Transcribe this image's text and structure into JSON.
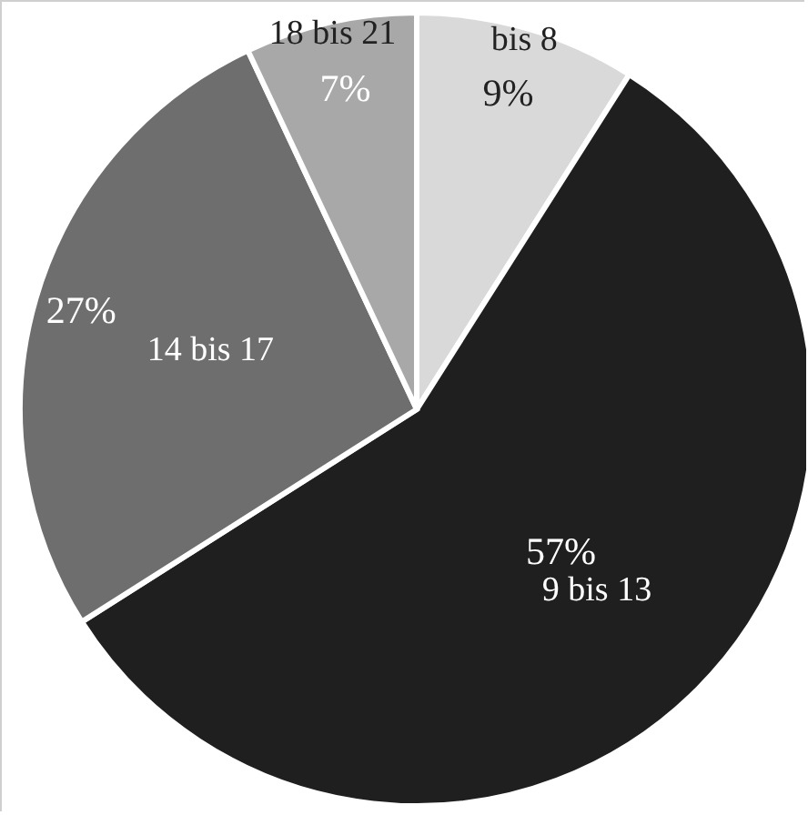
{
  "chart_data": {
    "type": "pie",
    "categories": [
      "bis 8",
      "9 bis 13",
      "14 bis 17",
      "18 bis 21"
    ],
    "values": [
      9,
      57,
      27,
      7
    ],
    "value_labels": [
      "9%",
      "57%",
      "27%",
      "7%"
    ],
    "colors": [
      "#d9d9d9",
      "#1f1f1f",
      "#6e6e6e",
      "#a8a8a8"
    ]
  }
}
